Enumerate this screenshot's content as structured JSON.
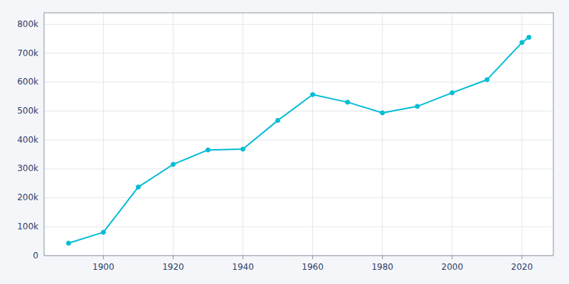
{
  "chart_data": {
    "type": "line",
    "x": [
      1890,
      1900,
      1910,
      1920,
      1930,
      1940,
      1950,
      1960,
      1970,
      1980,
      1990,
      2000,
      2010,
      2020,
      2022
    ],
    "values": [
      42837,
      80671,
      237194,
      315652,
      365583,
      368302,
      467591,
      557087,
      530831,
      493846,
      516259,
      563374,
      608660,
      737255,
      755078
    ],
    "color": "#00BCD4",
    "marker": "circle",
    "xlim": [
      1883,
      2029
    ],
    "ylim": [
      0,
      840000
    ],
    "xticks": [
      1900,
      1920,
      1940,
      1960,
      1980,
      2000,
      2020
    ],
    "yticks": [
      0,
      {
        "value": 100000,
        "label": "100k"
      },
      {
        "value": 200000,
        "label": "200k"
      },
      {
        "value": 300000,
        "label": "300k"
      },
      {
        "value": 400000,
        "label": "400k"
      },
      {
        "value": 500000,
        "label": "500k"
      },
      {
        "value": 600000,
        "label": "600k"
      },
      {
        "value": 700000,
        "label": "700k"
      },
      {
        "value": 800000,
        "label": "800k"
      }
    ],
    "grid": true
  }
}
